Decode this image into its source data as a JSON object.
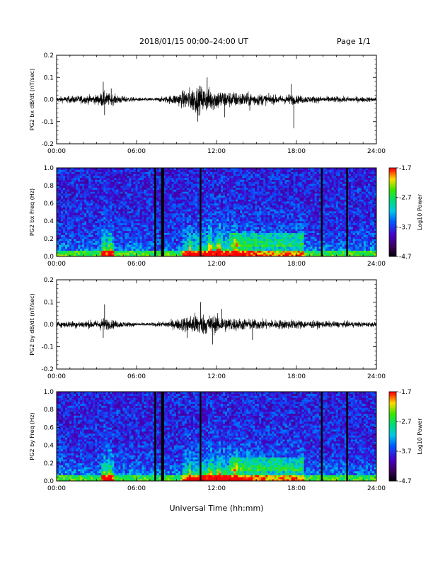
{
  "header": {
    "title": "2018/01/15  00:00–24:00 UT",
    "page": "Page 1/1"
  },
  "chart_data": [
    {
      "id": "p1",
      "type": "line",
      "ylabel": "PG2 bx dB/dt (nT/sec)",
      "xlabel": "",
      "xticks": [
        "00:00",
        "06:00",
        "12:00",
        "18:00",
        "24:00"
      ],
      "xlim": [
        0,
        24
      ],
      "ylim": [
        -0.2,
        0.2
      ],
      "yticks": [
        "0.2",
        "0.1",
        "0.0",
        "-0.1",
        "-0.2"
      ],
      "envelope_hours": [
        0,
        1,
        2,
        3,
        3.5,
        4,
        5,
        6,
        7,
        8,
        9,
        10,
        10.5,
        11,
        12,
        13,
        14,
        15,
        16,
        17,
        17.5,
        18,
        19,
        20,
        21,
        22,
        23,
        24
      ],
      "envelope_amp": [
        0.012,
        0.015,
        0.018,
        0.02,
        0.035,
        0.025,
        0.015,
        0.008,
        0.007,
        0.012,
        0.025,
        0.05,
        0.06,
        0.055,
        0.045,
        0.035,
        0.03,
        0.028,
        0.02,
        0.018,
        0.025,
        0.018,
        0.015,
        0.014,
        0.013,
        0.012,
        0.011,
        0.01
      ],
      "spikes": [
        [
          3.5,
          0.08
        ],
        [
          3.6,
          -0.07
        ],
        [
          4.1,
          0.05
        ],
        [
          10.6,
          -0.1
        ],
        [
          11.3,
          0.1
        ],
        [
          12.6,
          -0.08
        ],
        [
          17.8,
          -0.13
        ],
        [
          17.6,
          0.07
        ],
        [
          14.5,
          -0.05
        ]
      ]
    },
    {
      "id": "p2",
      "type": "heatmap",
      "ylabel": "PG2 bx Freq (Hz)",
      "xlabel": "",
      "xticks": [
        "00:00",
        "06:00",
        "12:00",
        "18:00",
        "24:00"
      ],
      "xlim": [
        0,
        24
      ],
      "ylim": [
        0,
        1
      ],
      "yticks": [
        "1.0",
        "0.8",
        "0.6",
        "0.4",
        "0.2",
        "0.0"
      ],
      "colorbar": {
        "label": "Log10 Power",
        "ticks": [
          "-1.7",
          "-2.7",
          "-3.7",
          "-4.7"
        ],
        "range": [
          -4.7,
          -1.7
        ]
      },
      "gaps_hours": [
        7.4,
        7.9,
        8.0,
        10.8,
        19.9,
        21.8
      ],
      "bright_columns_hours": [
        3.6,
        4.0,
        10.0,
        11.5,
        12.2,
        13.4
      ]
    },
    {
      "id": "p3",
      "type": "line",
      "ylabel": "PG2 by dB/dt (nT/sec)",
      "xlabel": "",
      "xticks": [
        "00:00",
        "06:00",
        "12:00",
        "18:00",
        "24:00"
      ],
      "xlim": [
        0,
        24
      ],
      "ylim": [
        -0.2,
        0.2
      ],
      "yticks": [
        "0.2",
        "0.1",
        "0.0",
        "-0.1",
        "-0.2"
      ],
      "envelope_hours": [
        0,
        1,
        2,
        3,
        3.5,
        4,
        5,
        6,
        7,
        8,
        9,
        10,
        10.5,
        11,
        12,
        13,
        14,
        15,
        16,
        17,
        18,
        19,
        20,
        21,
        22,
        23,
        24
      ],
      "envelope_amp": [
        0.012,
        0.015,
        0.016,
        0.018,
        0.03,
        0.02,
        0.012,
        0.008,
        0.007,
        0.012,
        0.022,
        0.04,
        0.05,
        0.045,
        0.038,
        0.03,
        0.025,
        0.022,
        0.02,
        0.02,
        0.02,
        0.016,
        0.014,
        0.013,
        0.012,
        0.011,
        0.01
      ],
      "spikes": [
        [
          3.6,
          0.09
        ],
        [
          3.5,
          -0.06
        ],
        [
          10.8,
          0.1
        ],
        [
          11.7,
          -0.09
        ],
        [
          12.4,
          0.07
        ],
        [
          14.7,
          -0.07
        ],
        [
          9.8,
          -0.06
        ]
      ]
    },
    {
      "id": "p4",
      "type": "heatmap",
      "ylabel": "PG2 by Freq (Hz)",
      "xlabel": "Universal Time (hh:mm)",
      "xticks": [
        "00:00",
        "06:00",
        "12:00",
        "18:00",
        "24:00"
      ],
      "xlim": [
        0,
        24
      ],
      "ylim": [
        0,
        1
      ],
      "yticks": [
        "1.0",
        "0.8",
        "0.6",
        "0.4",
        "0.2",
        "0.0"
      ],
      "colorbar": {
        "label": "Log10 Power",
        "ticks": [
          "-1.7",
          "-2.7",
          "-3.7",
          "-4.7"
        ],
        "range": [
          -4.7,
          -1.7
        ]
      },
      "gaps_hours": [
        7.4,
        7.9,
        8.0,
        10.8,
        19.9,
        21.8
      ],
      "bright_columns_hours": [
        3.6,
        4.0,
        10.0,
        11.5,
        12.2,
        13.4
      ]
    }
  ]
}
